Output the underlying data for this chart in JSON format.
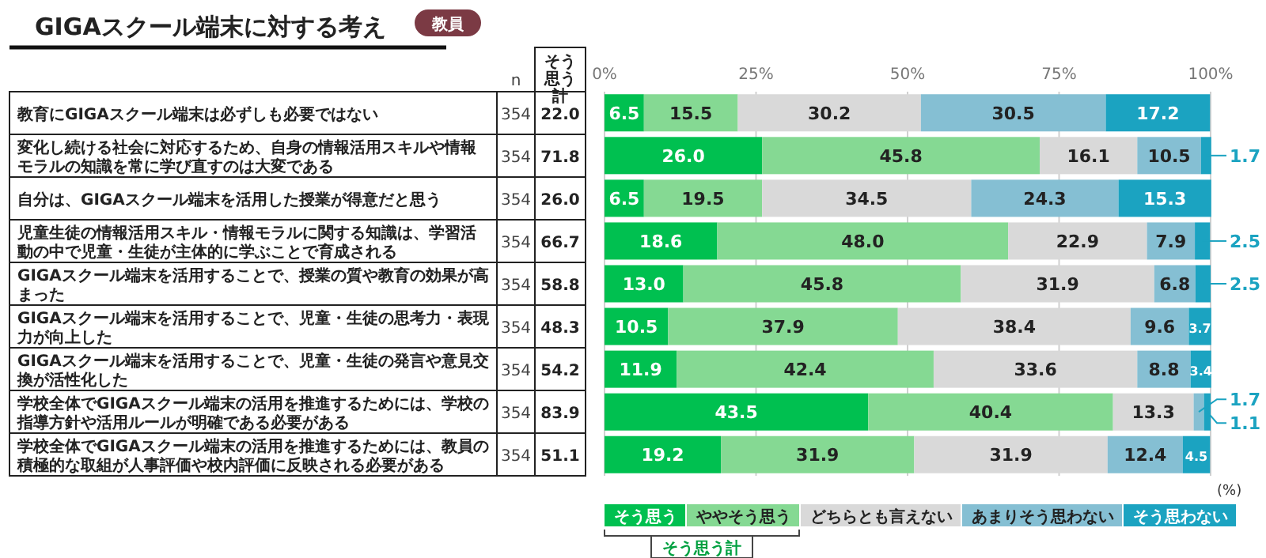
{
  "chart_data": {
    "type": "bar",
    "orientation": "horizontal",
    "stacked": true,
    "title": "GIGAスクール端末に対する考え",
    "categories": [
      "教育にGIGAスクール端末は必ずしも必要ではない",
      "変化し続ける社会に対応するため、自身の情報活用スキルや情報モラルの知識を常に学び直すのは大変である",
      "自分は、GIGAスクール端末を活用した授業が得意だと思う",
      "児童生徒の情報活用スキル・情報モラルに関する知識は、学習活動の中で児童・生徒が主体的に学ぶことで育成される",
      "GIGAスクール端末を活用することで、授業の質や教育の効果が高まった",
      "GIGAスクール端末を活用することで、児童・生徒の思考力・表現力が向上した",
      "GIGAスクール端末を活用することで、児童・生徒の発言や意見交換が活性化した",
      "学校全体でGIGAスクール端末の活用を推進するためには、学校の指導方針や活用ルールが明確である必要がある",
      "学校全体でGIGAスクール端末の活用を推進するためには、教員の積極的な取組が人事評価や校内評価に反映される必要がある"
    ],
    "series": [
      {
        "name": "そう思う",
        "color": "#00c050",
        "values": [
          6.5,
          26,
          6.5,
          18.6,
          13,
          10.5,
          11.9,
          43.5,
          19.2
        ],
        "value_labels": [
          "6.5",
          "26.0",
          "6.5",
          "18.6",
          "13.0",
          "10.5",
          "11.9",
          "43.5",
          "19.2"
        ]
      },
      {
        "name": "ややそう思う",
        "color": "#85d993",
        "values": [
          15.5,
          45.8,
          19.5,
          48,
          45.8,
          37.9,
          42.4,
          40.4,
          31.9
        ],
        "value_labels": [
          "15.5",
          "45.8",
          "19.5",
          "48.0",
          "45.8",
          "37.9",
          "42.4",
          "40.4",
          "31.9"
        ]
      },
      {
        "name": "どちらとも言えない",
        "color": "#d9d9d9",
        "values": [
          30.2,
          16.1,
          34.5,
          22.9,
          31.9,
          38.4,
          33.6,
          13.3,
          31.9
        ],
        "value_labels": [
          "30.2",
          "16.1",
          "34.5",
          "22.9",
          "31.9",
          "38.4",
          "33.6",
          "13.3",
          "31.9"
        ]
      },
      {
        "name": "あまりそう思わない",
        "color": "#85bfd3",
        "values": [
          30.5,
          10.5,
          24.3,
          7.9,
          6.8,
          9.6,
          8.8,
          1.7,
          12.4
        ],
        "value_labels": [
          "30.5",
          "10.5",
          "24.3",
          "7.9",
          "6.8",
          "9.6",
          "8.8",
          "1.7",
          "12.4"
        ]
      },
      {
        "name": "そう思わない",
        "color": "#1ba3c1",
        "values": [
          17.2,
          1.7,
          15.3,
          2.5,
          2.5,
          3.7,
          3.4,
          1.1,
          4.5
        ],
        "value_labels": [
          "17.2",
          "1.7",
          "15.3",
          "2.5",
          "2.5",
          "3.7",
          "3.4",
          "1.1",
          "4.5"
        ]
      }
    ],
    "xlim": [
      0,
      100
    ],
    "xticks": [
      {
        "value": 0,
        "label": "0%"
      },
      {
        "value": 25,
        "label": "25%"
      },
      {
        "value": 50,
        "label": "50%"
      },
      {
        "value": 75,
        "label": "75%"
      },
      {
        "value": 100,
        "label": "100%"
      }
    ],
    "grid": "x",
    "legend": "bottom",
    "annotations": [
      "教員",
      "n",
      "そう思う計",
      "(%)",
      "そう思う計",
      "354",
      "354",
      "354",
      "354",
      "354",
      "354",
      "354",
      "354",
      "354",
      "22.0",
      "71.8",
      "26.0",
      "66.7",
      "58.8",
      "48.3",
      "54.2",
      "83.9",
      "51.1"
    ]
  }
}
